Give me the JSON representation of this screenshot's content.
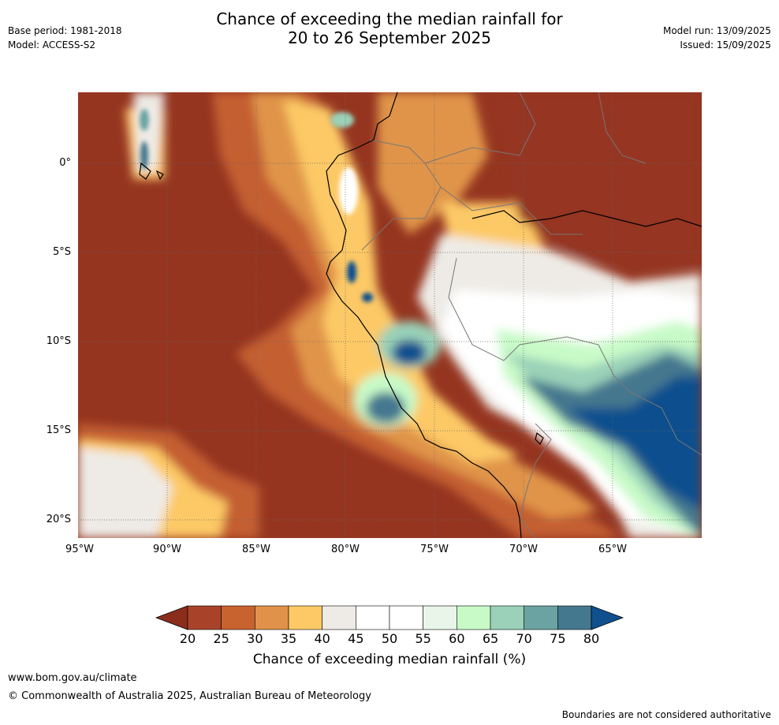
{
  "header": {
    "title_line1": "Chance of exceeding the median rainfall for",
    "title_line2": "20 to 26 September 2025",
    "base_period": "Base period: 1981-2018",
    "model": "Model: ACCESS-S2",
    "model_run": "Model run: 13/09/2025",
    "issued": "Issued: 15/09/2025"
  },
  "map": {
    "lat_labels": [
      "0°",
      "5°S",
      "10°S",
      "15°S",
      "20°S"
    ],
    "lon_labels": [
      "95°W",
      "90°W",
      "85°W",
      "80°W",
      "75°W",
      "70°W",
      "65°W"
    ]
  },
  "colorbar": {
    "label": "Chance of exceeding median rainfall (%)",
    "ticks": [
      "20",
      "25",
      "30",
      "35",
      "40",
      "45",
      "50",
      "55",
      "60",
      "65",
      "70",
      "75",
      "80"
    ],
    "low_color": "#8c2d1c",
    "high_color": "#10508e",
    "colors": [
      "#a8432a",
      "#c8622e",
      "#e0924a",
      "#fdc966",
      "#eeebe6",
      "#ffffff",
      "#ffffff",
      "#e9f5e9",
      "#c8fac8",
      "#9ad1b8",
      "#6ba3a2",
      "#44788f"
    ]
  },
  "footer": {
    "website": "www.bom.gov.au/climate",
    "copyright": "© Commonwealth of Australia 2025, Australian Bureau of Meteorology",
    "disclaimer": "Boundaries are not considered authoritative"
  }
}
